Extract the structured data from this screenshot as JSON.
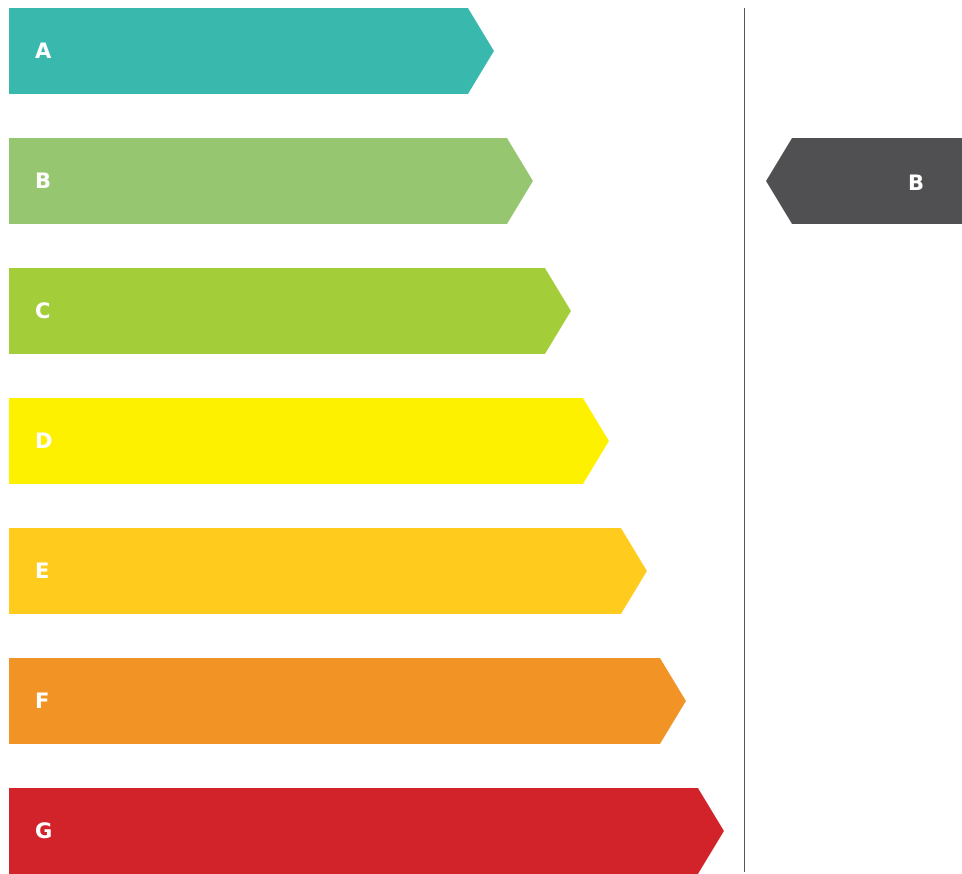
{
  "scale": {
    "ratings": [
      {
        "label": "A",
        "color": "#39b8ad"
      },
      {
        "label": "B",
        "color": "#96c66f"
      },
      {
        "label": "C",
        "color": "#a4cd3a"
      },
      {
        "label": "D",
        "color": "#fef100"
      },
      {
        "label": "E",
        "color": "#ffcc1e"
      },
      {
        "label": "F",
        "color": "#f29325"
      },
      {
        "label": "G",
        "color": "#d2232a"
      }
    ]
  },
  "current_rating": {
    "label": "B",
    "color": "#505052"
  }
}
